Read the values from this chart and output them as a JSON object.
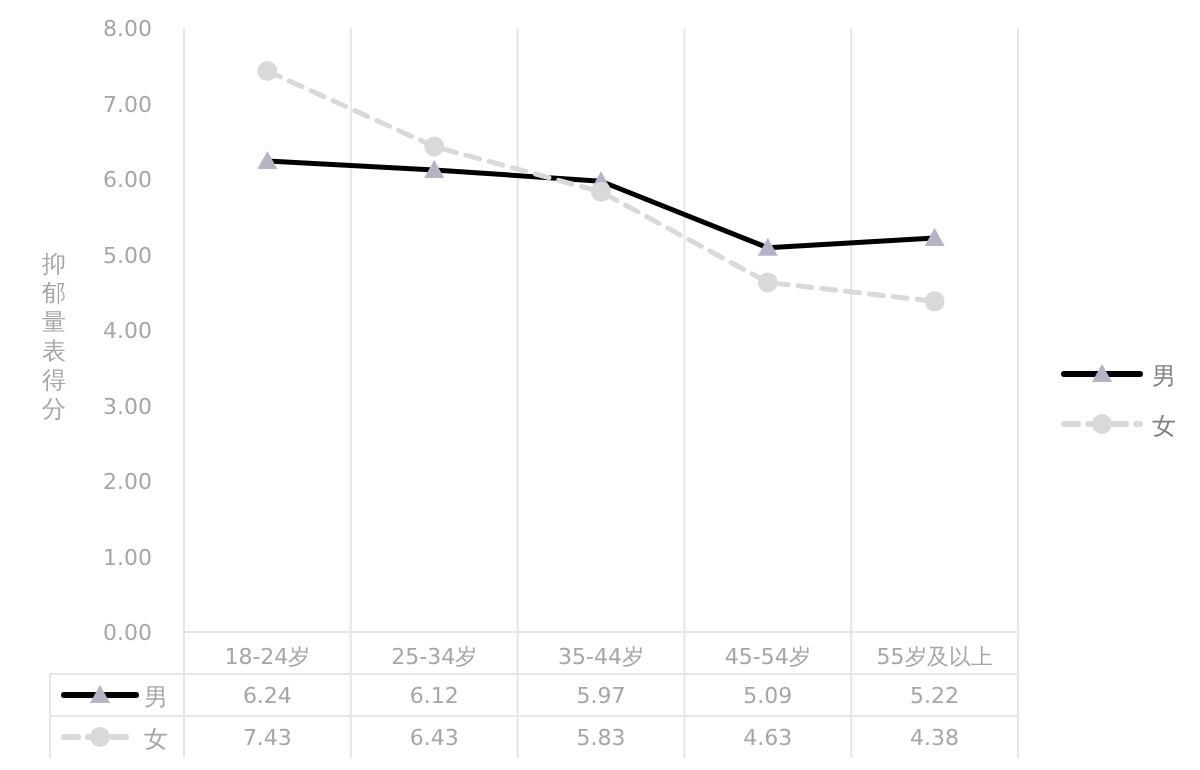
{
  "chart_data": {
    "type": "line",
    "ylabel": "抑郁量表得分",
    "categories": [
      "18-24岁",
      "25-34岁",
      "35-44岁",
      "45-54岁",
      "55岁及以上"
    ],
    "series": [
      {
        "name": "男",
        "color": "#000000",
        "values": [
          6.24,
          6.12,
          5.97,
          5.09,
          5.22
        ],
        "marker": "triangle",
        "line_style": "solid"
      },
      {
        "name": "女",
        "color": "#d9d9d9",
        "values": [
          7.43,
          6.43,
          5.83,
          4.63,
          4.38
        ],
        "marker": "circle",
        "line_style": "dashed"
      }
    ],
    "ylim": [
      0,
      8
    ],
    "yticks": [
      {
        "value": 0,
        "label": "0.00"
      },
      {
        "value": 1,
        "label": "1.00"
      },
      {
        "value": 2,
        "label": "2.00"
      },
      {
        "value": 3,
        "label": "3.00"
      },
      {
        "value": 4,
        "label": "4.00"
      },
      {
        "value": 5,
        "label": "5.00"
      },
      {
        "value": 6,
        "label": "6.00"
      },
      {
        "value": 7,
        "label": "7.00"
      },
      {
        "value": 8,
        "label": "8.00"
      }
    ],
    "grid": "x",
    "legend": "right",
    "data_labels": true
  }
}
